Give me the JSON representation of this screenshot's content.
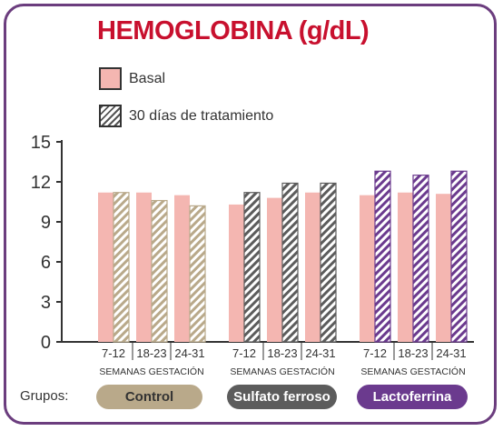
{
  "chart_data": {
    "type": "bar",
    "title": "HEMOGLOBINA (g/dL)",
    "ylim": [
      0,
      15
    ],
    "yticks": [
      0,
      3,
      6,
      9,
      12,
      15
    ],
    "legend": [
      {
        "name": "Basal",
        "style": "solid",
        "color": "#f4b6b1"
      },
      {
        "name": "30 días de tratamiento",
        "style": "hatched",
        "color": "#555555"
      }
    ],
    "categories": [
      "7-12",
      "18-23",
      "24-31"
    ],
    "category_caption": "SEMANAS GESTACIÓN",
    "groups": [
      {
        "name": "Control",
        "color": "#b9a98a",
        "basal": [
          11.2,
          11.2,
          11.0
        ],
        "tratamiento": [
          11.2,
          10.6,
          10.2
        ]
      },
      {
        "name": "Sulfato ferroso",
        "color": "#5c5c5c",
        "basal": [
          10.3,
          10.8,
          11.2
        ],
        "tratamiento": [
          11.2,
          11.9,
          11.9
        ]
      },
      {
        "name": "Lactoferrina",
        "color": "#6b3a8e",
        "basal": [
          11.0,
          11.2,
          11.1
        ],
        "tratamiento": [
          12.8,
          12.5,
          12.8
        ]
      }
    ]
  },
  "footer": {
    "groups_label": "Grupos:"
  },
  "colors": {
    "basal": "#f4b6b1",
    "title": "#c8102e",
    "frame": "#6b3d7e",
    "axis": "#333333"
  }
}
